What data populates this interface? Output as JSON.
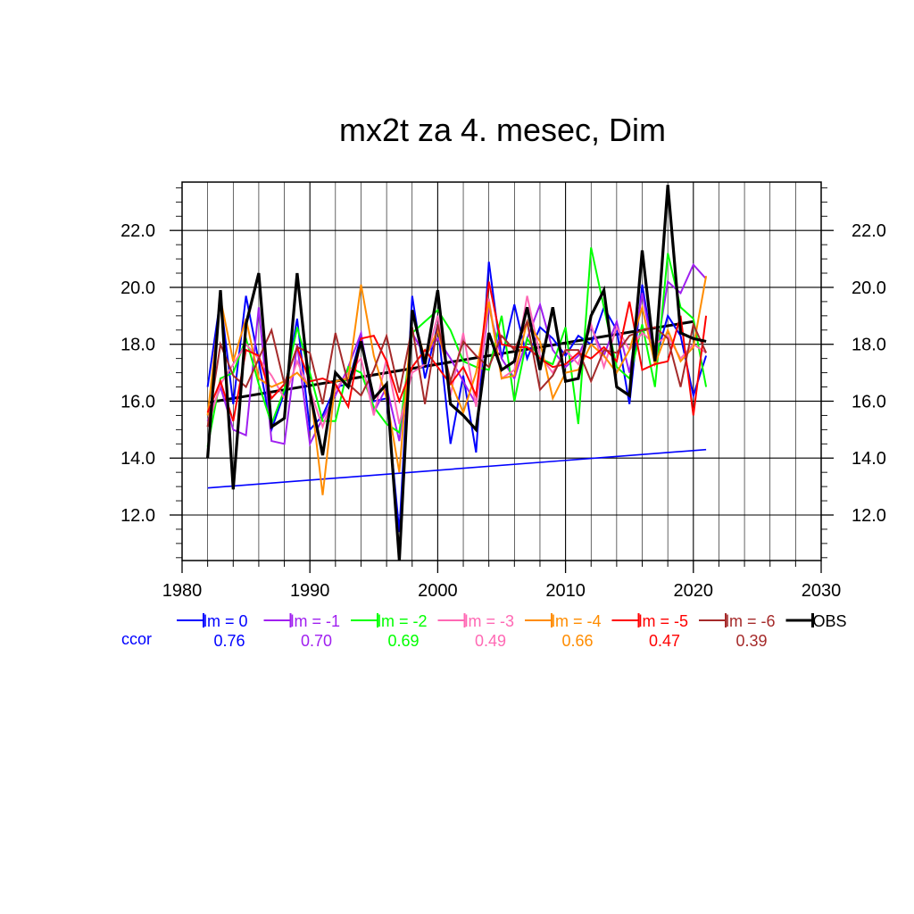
{
  "chart_data": {
    "type": "line",
    "title": "mx2t za 4. mesec, Dim",
    "xlabel": "",
    "ylabel": "",
    "xlim": [
      1980,
      2030
    ],
    "ylim": [
      10.4,
      23.7
    ],
    "x_ticks": [
      1980,
      1990,
      2000,
      2010,
      2020,
      2030
    ],
    "x_tick_labels": [
      "1980",
      "1990",
      "2000",
      "2010",
      "2020",
      "2030"
    ],
    "y_ticks": [
      12,
      14,
      16,
      18,
      20,
      22
    ],
    "y_tick_labels": [
      "12.0",
      "14.0",
      "16.0",
      "18.0",
      "20.0",
      "22.0"
    ],
    "grid": true,
    "legend_position": "bottom",
    "x": [
      1982,
      1983,
      1984,
      1985,
      1986,
      1987,
      1988,
      1989,
      1990,
      1991,
      1992,
      1993,
      1994,
      1995,
      1996,
      1997,
      1998,
      1999,
      2000,
      2001,
      2002,
      2003,
      2004,
      2005,
      2006,
      2007,
      2008,
      2009,
      2010,
      2011,
      2012,
      2013,
      2014,
      2015,
      2016,
      2017,
      2018,
      2019,
      2020,
      2021
    ],
    "series": [
      {
        "name": "lm = 0",
        "color": "#0000ff",
        "ccor": "0.76",
        "values": [
          16.5,
          19.6,
          15.9,
          19.7,
          17.4,
          15.0,
          16.3,
          18.9,
          15.0,
          15.5,
          16.5,
          16.6,
          18.3,
          16.0,
          16.1,
          11.4,
          19.7,
          16.8,
          18.7,
          14.5,
          16.9,
          14.2,
          20.9,
          17.5,
          19.4,
          17.5,
          18.6,
          18.2,
          17.6,
          18.3,
          18.0,
          19.3,
          18.5,
          15.9,
          20.1,
          17.4,
          19.0,
          18.3,
          16.2,
          17.6
        ]
      },
      {
        "name": "lm = -1",
        "color": "#a020f0",
        "ccor": "0.70",
        "values": [
          15.3,
          16.5,
          15.0,
          14.8,
          19.3,
          14.6,
          14.5,
          18.0,
          14.5,
          15.4,
          16.2,
          17.2,
          18.4,
          15.6,
          16.5,
          14.6,
          18.4,
          17.6,
          18.2,
          17.5,
          16.7,
          15.9,
          19.3,
          17.5,
          16.8,
          18.2,
          19.4,
          17.8,
          17.2,
          17.6,
          18.6,
          17.6,
          18.8,
          17.0,
          19.8,
          17.4,
          20.2,
          19.8,
          20.8,
          20.3
        ]
      },
      {
        "name": "lm = -2",
        "color": "#00ff00",
        "ccor": "0.69",
        "values": [
          14.4,
          16.8,
          17.0,
          18.2,
          16.6,
          15.2,
          16.4,
          18.6,
          17.0,
          15.3,
          15.3,
          17.2,
          17.0,
          15.8,
          15.2,
          14.9,
          18.4,
          18.8,
          19.2,
          18.5,
          17.4,
          17.2,
          17.1,
          19.0,
          16.0,
          18.2,
          17.5,
          17.3,
          18.6,
          15.2,
          21.4,
          19.3,
          17.2,
          16.8,
          18.7,
          16.5,
          21.2,
          19.3,
          18.9,
          16.5
        ]
      },
      {
        "name": "lm = -3",
        "color": "#ff69b4",
        "ccor": "0.49",
        "values": [
          15.1,
          16.6,
          17.3,
          18.0,
          17.5,
          16.9,
          16.1,
          17.4,
          16.4,
          15.1,
          16.4,
          17.0,
          17.5,
          15.5,
          17.5,
          15.2,
          17.0,
          17.3,
          19.0,
          16.2,
          18.4,
          15.8,
          19.6,
          16.8,
          17.1,
          19.7,
          17.6,
          17.0,
          17.8,
          17.3,
          18.7,
          17.2,
          18.6,
          17.8,
          18.4,
          18.0,
          18.3,
          17.5,
          18.0,
          17.7
        ]
      },
      {
        "name": "lm = -4",
        "color": "#ff8c00",
        "ccor": "0.66",
        "values": [
          15.5,
          19.6,
          17.4,
          18.9,
          16.8,
          16.5,
          16.7,
          17.0,
          16.5,
          12.7,
          16.7,
          16.8,
          20.1,
          17.6,
          16.1,
          13.5,
          19.1,
          17.5,
          18.5,
          16.7,
          15.6,
          17.0,
          19.5,
          16.8,
          16.9,
          18.8,
          18.1,
          16.1,
          17.0,
          17.1,
          18.0,
          17.6,
          17.0,
          17.8,
          19.3,
          17.3,
          18.5,
          17.4,
          17.9,
          20.4
        ]
      },
      {
        "name": "lm = -5",
        "color": "#ff0000",
        "ccor": "0.47",
        "values": [
          15.6,
          16.7,
          15.3,
          17.8,
          17.6,
          16.1,
          16.6,
          17.9,
          16.7,
          16.8,
          16.6,
          15.8,
          18.2,
          18.3,
          17.4,
          16.0,
          17.2,
          17.8,
          17.2,
          16.6,
          17.2,
          16.2,
          20.2,
          18.0,
          17.9,
          17.9,
          17.5,
          17.2,
          17.3,
          17.7,
          17.5,
          17.9,
          17.4,
          19.5,
          17.1,
          17.3,
          17.4,
          19.0,
          15.5,
          19.0
        ]
      },
      {
        "name": "lm = -6",
        "color": "#a52a2a",
        "ccor": "0.39",
        "values": [
          15.1,
          18.0,
          16.9,
          16.5,
          17.5,
          18.5,
          16.6,
          17.9,
          17.7,
          15.9,
          18.4,
          16.6,
          16.2,
          17.1,
          18.3,
          16.3,
          18.6,
          15.9,
          18.7,
          16.7,
          18.1,
          17.6,
          17.2,
          18.3,
          17.8,
          18.8,
          16.4,
          16.9,
          17.8,
          17.8,
          16.7,
          17.8,
          17.7,
          18.3,
          18.5,
          18.6,
          18.2,
          16.5,
          18.7,
          17.7
        ]
      },
      {
        "name": "OBS",
        "color": "#000000",
        "ccor": "",
        "values": [
          14.0,
          19.9,
          12.9,
          18.7,
          20.5,
          15.1,
          15.4,
          20.5,
          16.3,
          14.1,
          17.0,
          16.5,
          18.1,
          16.1,
          16.6,
          10.4,
          19.2,
          17.3,
          19.9,
          15.9,
          15.5,
          15.0,
          18.4,
          17.1,
          17.4,
          19.3,
          17.1,
          19.3,
          16.7,
          16.8,
          19.0,
          19.9,
          16.5,
          16.2,
          21.3,
          17.4,
          23.6,
          18.4,
          18.2,
          18.1
        ]
      }
    ],
    "trend_lines": [
      {
        "name": "obs-trend",
        "color": "#000000",
        "x": [
          1982,
          2020
        ],
        "y": [
          15.95,
          18.8
        ]
      },
      {
        "name": "blue-trend",
        "color": "#0000ff",
        "x": [
          1982,
          2021
        ],
        "y": [
          12.95,
          14.3
        ]
      }
    ],
    "ccor_label": "ccor",
    "ccor_label_color": "#0000ff"
  }
}
